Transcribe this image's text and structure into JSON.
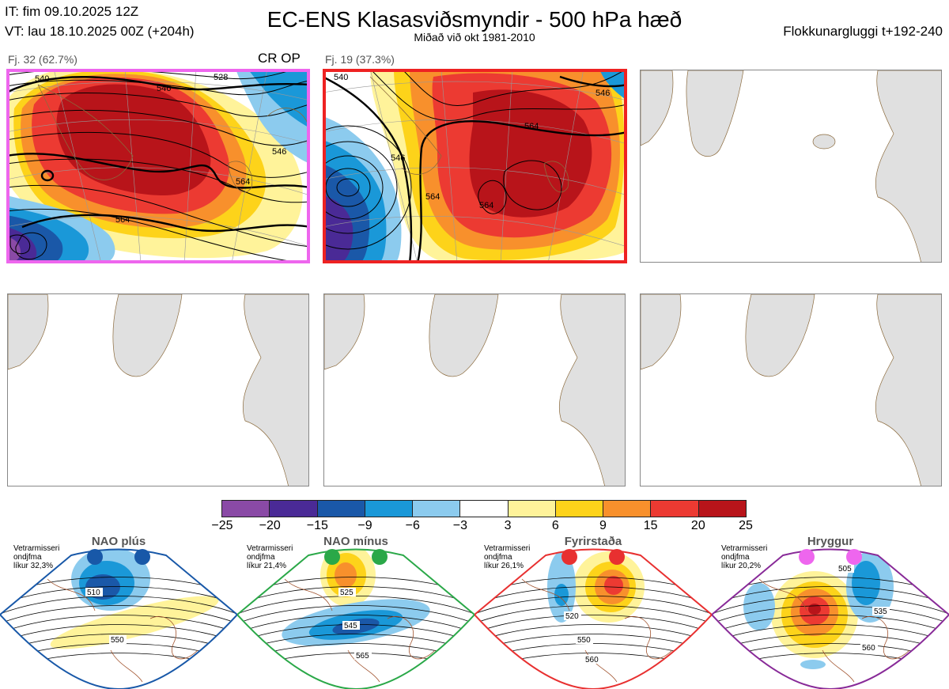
{
  "header": {
    "it_line": "IT: fim 09.10.2025 12Z",
    "vt_line": "VT: lau 18.10.2025 00Z  (+204h)",
    "title": "EC-ENS Klasasviðsmyndir - 500 hPa hæð",
    "subtitle": "Miðað við okt 1981-2010",
    "window_label": "Flokkunargluggi t+192-240"
  },
  "clusters": [
    {
      "label": "Fj. 32 (62.7%)",
      "members": 32,
      "percent": 62.7,
      "op_label": "CR OP",
      "border_color": "#ee66ee",
      "contour_labels": [
        "540",
        "546",
        "528",
        "546",
        "564",
        "564"
      ]
    },
    {
      "label": "Fj. 19 (37.3%)",
      "members": 19,
      "percent": 37.3,
      "op_label": "",
      "border_color": "#ee2222",
      "contour_labels": [
        "540",
        "546",
        "546",
        "564",
        "564",
        "564"
      ]
    }
  ],
  "chart_data": {
    "type": "heatmap",
    "title": "EC-ENS Klasasviðsmyndir - 500 hPa hæð",
    "variable": "500 hPa geopotential height anomaly (dam) with contours",
    "colorbar": {
      "ticks": [
        "−25",
        "−20",
        "−15",
        "−9",
        "−6",
        "−3",
        "3",
        "6",
        "9",
        "15",
        "20",
        "25"
      ],
      "colors": [
        "#8a4aa6",
        "#4a2a96",
        "#1a58a8",
        "#1a98d8",
        "#8ccbee",
        "#ffffff",
        "#fff39a",
        "#fdd31a",
        "#f8902c",
        "#ec3a32",
        "#b8141a"
      ]
    }
  },
  "regimes": [
    {
      "name": "NAO plús",
      "note1": "Vetrarmisseri",
      "note2": "ondjfma",
      "note3": "líkur 32,3%",
      "border_color": "#1858a8",
      "dot_color": "#1858a8",
      "contour_labels": [
        "510",
        "550"
      ]
    },
    {
      "name": "NAO mínus",
      "note1": "Vetrarmisseri",
      "note2": "ondjfma",
      "note3": "líkur 21,4%",
      "border_color": "#2aa848",
      "dot_color": "#2aa848",
      "contour_labels": [
        "525",
        "545",
        "565"
      ]
    },
    {
      "name": "Fyrirstaða",
      "note1": "Vetrarmisseri",
      "note2": "ondjfma",
      "note3": "líkur 26,1%",
      "border_color": "#e83030",
      "dot_color": "#e83030",
      "contour_labels": [
        "520",
        "550",
        "560"
      ]
    },
    {
      "name": "Hryggur",
      "note1": "Vetrarmisseri",
      "note2": "ondjfma",
      "note3": "líkur 20,2%",
      "border_color": "#882a98",
      "dot_color": "#ee66ee",
      "contour_labels": [
        "505",
        "535",
        "560"
      ]
    }
  ]
}
